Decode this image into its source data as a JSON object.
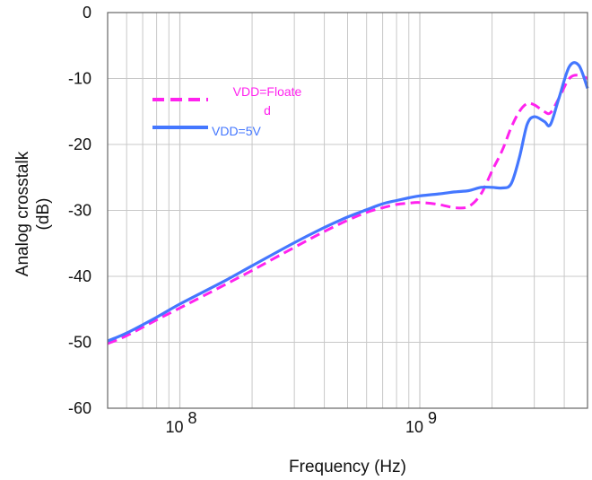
{
  "chart_data": {
    "type": "line",
    "xlabel": "Frequency (Hz)",
    "ylabel": "Analog crosstalk",
    "ylabel_unit": "(dB)",
    "x_scale": "log",
    "xlim": [
      50000000,
      5000000000
    ],
    "ylim": [
      -60,
      0
    ],
    "grid": true,
    "legend_position": "top-left",
    "x_ticks": [
      {
        "value": 100000000,
        "base": "10",
        "exp": "8"
      },
      {
        "value": 1000000000,
        "base": "10",
        "exp": "9"
      }
    ],
    "y_ticks": [
      {
        "value": 0,
        "label": "0"
      },
      {
        "value": -10,
        "label": "-10"
      },
      {
        "value": -20,
        "label": "-20"
      },
      {
        "value": -30,
        "label": "-30"
      },
      {
        "value": -40,
        "label": "-40"
      },
      {
        "value": -50,
        "label": "-50"
      },
      {
        "value": -60,
        "label": "-60"
      }
    ],
    "series": [
      {
        "name": "VDD=Floated",
        "legend_lines": [
          "VDD=Floate",
          "d"
        ],
        "color": "#ff22ee",
        "style": "dashed",
        "x": [
          50000000,
          60000000,
          80000000,
          100000000,
          150000000,
          200000000,
          300000000,
          400000000,
          500000000,
          600000000,
          700000000,
          800000000,
          900000000,
          1000000000,
          1200000000,
          1400000000,
          1600000000,
          1800000000,
          2000000000,
          2200000000,
          2400000000,
          2600000000,
          2800000000,
          3000000000,
          3300000000,
          3500000000,
          3800000000,
          4200000000,
          4600000000,
          5000000000
        ],
        "y": [
          -50.2,
          -49,
          -46.6,
          -44.8,
          -41.5,
          -39.1,
          -35.6,
          -33.2,
          -31.5,
          -30.3,
          -29.6,
          -29.1,
          -28.9,
          -28.8,
          -29.1,
          -29.6,
          -29.4,
          -27.5,
          -24,
          -21,
          -17.5,
          -15,
          -13.8,
          -14,
          -15,
          -15.2,
          -13,
          -10,
          -9.5,
          -10
        ]
      },
      {
        "name": "VDD=5V",
        "legend_lines": [
          "VDD=5V"
        ],
        "color": "#4477ff",
        "style": "solid",
        "x": [
          50000000,
          60000000,
          80000000,
          100000000,
          150000000,
          200000000,
          300000000,
          400000000,
          500000000,
          600000000,
          700000000,
          800000000,
          900000000,
          1000000000,
          1200000000,
          1400000000,
          1600000000,
          1800000000,
          2000000000,
          2200000000,
          2400000000,
          2600000000,
          2800000000,
          3000000000,
          3300000000,
          3500000000,
          3800000000,
          4200000000,
          4600000000,
          5000000000
        ],
        "y": [
          -49.8,
          -48.6,
          -46.2,
          -44.2,
          -40.9,
          -38.4,
          -34.9,
          -32.6,
          -31,
          -29.9,
          -29,
          -28.5,
          -28.1,
          -27.8,
          -27.5,
          -27.2,
          -27,
          -26.5,
          -26.5,
          -26.6,
          -26,
          -22,
          -17,
          -15.8,
          -16.5,
          -17,
          -13,
          -8.2,
          -8,
          -11.5
        ]
      }
    ]
  }
}
